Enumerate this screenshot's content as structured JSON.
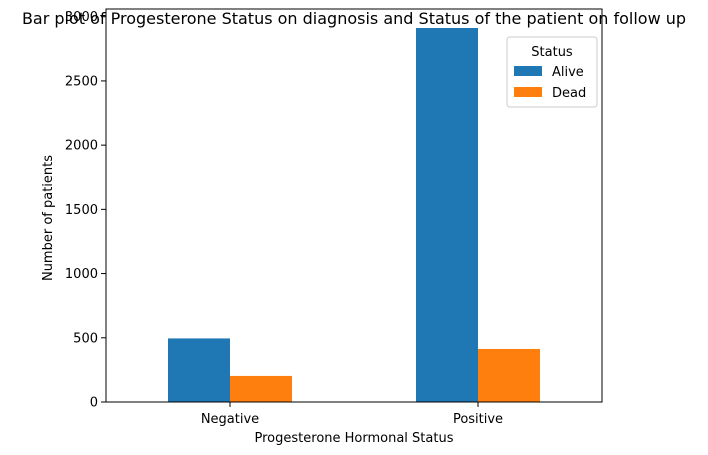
{
  "chart_data": {
    "type": "bar",
    "title": "Bar plot of Progesterone Status on diagnosis and Status of the patient on follow up",
    "xlabel": "Progesterone Hormonal Status",
    "ylabel": "Number of patients",
    "categories": [
      "Negative",
      "Positive"
    ],
    "series": [
      {
        "name": "Alive",
        "values": [
          495,
          2912
        ],
        "color": "#1f77b4"
      },
      {
        "name": "Dead",
        "values": [
          203,
          413
        ],
        "color": "#ff7f0e"
      }
    ],
    "ylim": [
      0,
      3060
    ],
    "yticks": [
      0,
      500,
      1000,
      1500,
      2000,
      2500,
      3000
    ],
    "grid": false,
    "legend": {
      "title": "Status",
      "placement": "top-right"
    }
  }
}
